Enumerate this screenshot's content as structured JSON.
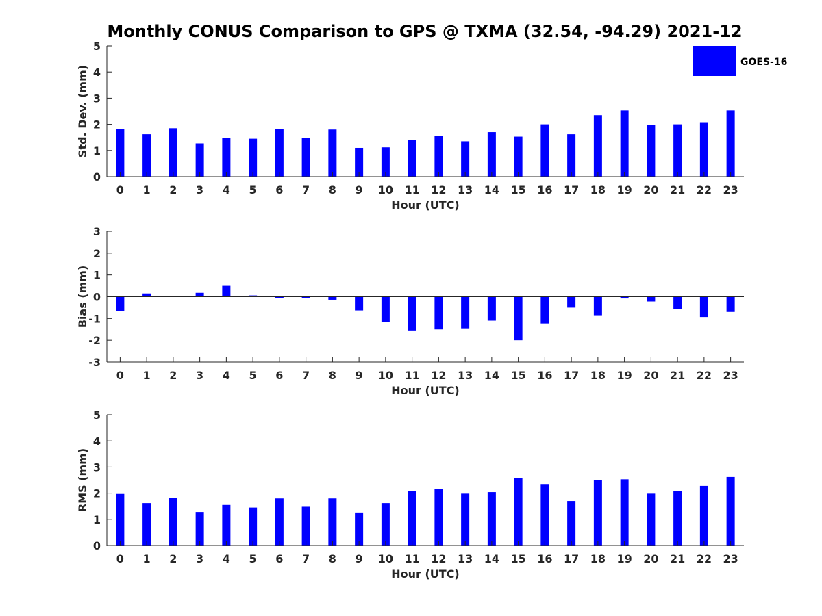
{
  "title": "Monthly CONUS Comparison to GPS @ TXMA (32.54, -94.29) 2021-12",
  "legend": {
    "label": "GOES-16",
    "placement": "top-right",
    "color": "#0000ff"
  },
  "chart_data": [
    {
      "type": "bar",
      "name": "std",
      "xlabel": "Hour (UTC)",
      "ylabel": "Std. Dev. (mm)",
      "ylim": [
        0,
        5
      ],
      "yticks": [
        0,
        1,
        2,
        3,
        4,
        5
      ],
      "categories": [
        "0",
        "1",
        "2",
        "3",
        "4",
        "5",
        "6",
        "7",
        "8",
        "9",
        "10",
        "11",
        "12",
        "13",
        "14",
        "15",
        "16",
        "17",
        "18",
        "19",
        "20",
        "21",
        "22",
        "23"
      ],
      "series": [
        {
          "name": "GOES-16",
          "color": "#0000ff",
          "values": [
            1.82,
            1.62,
            1.85,
            1.27,
            1.48,
            1.45,
            1.82,
            1.48,
            1.8,
            1.1,
            1.12,
            1.4,
            1.56,
            1.35,
            1.7,
            1.53,
            2.0,
            1.62,
            2.35,
            2.53,
            1.98,
            2.0,
            2.08,
            2.53
          ]
        }
      ]
    },
    {
      "type": "bar",
      "name": "bias",
      "xlabel": "Hour (UTC)",
      "ylabel": "Bias (mm)",
      "ylim": [
        -3,
        3
      ],
      "yticks": [
        -3,
        -2,
        -1,
        0,
        1,
        2,
        3
      ],
      "categories": [
        "0",
        "1",
        "2",
        "3",
        "4",
        "5",
        "6",
        "7",
        "8",
        "9",
        "10",
        "11",
        "12",
        "13",
        "14",
        "15",
        "16",
        "17",
        "18",
        "19",
        "20",
        "21",
        "22",
        "23"
      ],
      "series": [
        {
          "name": "GOES-16",
          "color": "#0000ff",
          "values": [
            -0.67,
            0.15,
            0.0,
            0.18,
            0.5,
            0.06,
            -0.05,
            -0.07,
            -0.14,
            -0.63,
            -1.17,
            -1.55,
            -1.5,
            -1.45,
            -1.1,
            -2.0,
            -1.23,
            -0.5,
            -0.85,
            -0.08,
            -0.22,
            -0.57,
            -0.93,
            -0.7
          ]
        }
      ]
    },
    {
      "type": "bar",
      "name": "rms",
      "xlabel": "Hour (UTC)",
      "ylabel": "RMS (mm)",
      "ylim": [
        0,
        5
      ],
      "yticks": [
        0,
        1,
        2,
        3,
        4,
        5
      ],
      "categories": [
        "0",
        "1",
        "2",
        "3",
        "4",
        "5",
        "6",
        "7",
        "8",
        "9",
        "10",
        "11",
        "12",
        "13",
        "14",
        "15",
        "16",
        "17",
        "18",
        "19",
        "20",
        "21",
        "22",
        "23"
      ],
      "series": [
        {
          "name": "GOES-16",
          "color": "#0000ff",
          "values": [
            1.97,
            1.62,
            1.83,
            1.28,
            1.55,
            1.45,
            1.8,
            1.48,
            1.8,
            1.26,
            1.62,
            2.08,
            2.17,
            1.98,
            2.04,
            2.57,
            2.35,
            1.7,
            2.5,
            2.53,
            1.98,
            2.07,
            2.28,
            2.62
          ]
        }
      ]
    }
  ]
}
